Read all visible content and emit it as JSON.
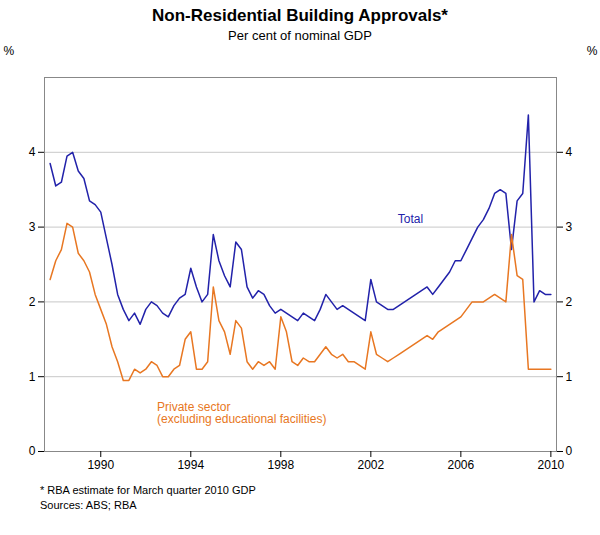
{
  "chart_data": {
    "type": "line",
    "title": "Non-Residential Building Approvals*",
    "subtitle": "Per cent of nominal GDP",
    "footnote": "*   RBA estimate for March quarter 2010 GDP",
    "sources": "Sources: ABS; RBA",
    "ylabel": "%",
    "y2label": "%",
    "xlim": [
      1987.5,
      2010.25
    ],
    "xticks": [
      1990,
      1994,
      1998,
      2002,
      2006,
      2010
    ],
    "ylim": [
      0,
      5
    ],
    "yticks": [
      0,
      1,
      2,
      3,
      4
    ],
    "y2lim": [
      0,
      5
    ],
    "y2ticks": [
      0,
      1,
      2,
      3,
      4
    ],
    "grid": "y",
    "x": [
      1987.75,
      1988.0,
      1988.25,
      1988.5,
      1988.75,
      1989.0,
      1989.25,
      1989.5,
      1989.75,
      1990.0,
      1990.25,
      1990.5,
      1990.75,
      1991.0,
      1991.25,
      1991.5,
      1991.75,
      1992.0,
      1992.25,
      1992.5,
      1992.75,
      1993.0,
      1993.25,
      1993.5,
      1993.75,
      1994.0,
      1994.25,
      1994.5,
      1994.75,
      1995.0,
      1995.25,
      1995.5,
      1995.75,
      1996.0,
      1996.25,
      1996.5,
      1996.75,
      1997.0,
      1997.25,
      1997.5,
      1997.75,
      1998.0,
      1998.25,
      1998.5,
      1998.75,
      1999.0,
      1999.25,
      1999.5,
      1999.75,
      2000.0,
      2000.25,
      2000.5,
      2000.75,
      2001.0,
      2001.25,
      2001.5,
      2001.75,
      2002.0,
      2002.25,
      2002.5,
      2002.75,
      2003.0,
      2003.25,
      2003.5,
      2003.75,
      2004.0,
      2004.25,
      2004.5,
      2004.75,
      2005.0,
      2005.25,
      2005.5,
      2005.75,
      2006.0,
      2006.25,
      2006.5,
      2006.75,
      2007.0,
      2007.25,
      2007.5,
      2007.75,
      2008.0,
      2008.25,
      2008.5,
      2008.75,
      2009.0,
      2009.25,
      2009.5,
      2009.75,
      2010.0
    ],
    "series": [
      {
        "name": "Total",
        "color": "#2222aa",
        "values": [
          3.85,
          3.55,
          3.6,
          3.95,
          4.0,
          3.75,
          3.65,
          3.35,
          3.3,
          3.2,
          2.85,
          2.5,
          2.1,
          1.9,
          1.75,
          1.85,
          1.7,
          1.9,
          2.0,
          1.95,
          1.85,
          1.8,
          1.95,
          2.05,
          2.1,
          2.45,
          2.2,
          2.0,
          2.1,
          2.9,
          2.55,
          2.35,
          2.2,
          2.8,
          2.7,
          2.2,
          2.05,
          2.15,
          2.1,
          1.95,
          1.85,
          1.9,
          1.85,
          1.8,
          1.75,
          1.85,
          1.8,
          1.75,
          1.9,
          2.1,
          2.0,
          1.9,
          1.95,
          1.9,
          1.85,
          1.8,
          1.75,
          2.3,
          2.0,
          1.95,
          1.9,
          1.9,
          1.95,
          2.0,
          2.05,
          2.1,
          2.15,
          2.2,
          2.1,
          2.2,
          2.3,
          2.4,
          2.55,
          2.55,
          2.7,
          2.85,
          3.0,
          3.1,
          3.25,
          3.45,
          3.5,
          3.45,
          2.7,
          3.35,
          3.45,
          4.5,
          2.0,
          2.15,
          2.1,
          2.1
        ]
      },
      {
        "name": "Private sector\n(excluding educational facilities)",
        "color": "#e87722",
        "values": [
          2.3,
          2.55,
          2.7,
          3.05,
          3.0,
          2.65,
          2.55,
          2.4,
          2.1,
          1.9,
          1.7,
          1.4,
          1.2,
          0.95,
          0.95,
          1.1,
          1.05,
          1.1,
          1.2,
          1.15,
          1.0,
          1.0,
          1.1,
          1.15,
          1.5,
          1.6,
          1.1,
          1.1,
          1.2,
          2.2,
          1.75,
          1.6,
          1.3,
          1.75,
          1.65,
          1.2,
          1.1,
          1.2,
          1.15,
          1.2,
          1.1,
          1.8,
          1.6,
          1.2,
          1.15,
          1.25,
          1.2,
          1.2,
          1.3,
          1.4,
          1.3,
          1.25,
          1.3,
          1.2,
          1.2,
          1.15,
          1.1,
          1.6,
          1.3,
          1.25,
          1.2,
          1.25,
          1.3,
          1.35,
          1.4,
          1.45,
          1.5,
          1.55,
          1.5,
          1.6,
          1.65,
          1.7,
          1.75,
          1.8,
          1.9,
          2.0,
          2.0,
          2.0,
          2.05,
          2.1,
          2.05,
          2.0,
          2.9,
          2.35,
          2.3,
          1.1,
          1.1,
          1.1,
          1.1,
          1.1
        ]
      }
    ],
    "annotations": [
      {
        "text": "Total",
        "x": 2003.2,
        "y": 3.05,
        "color": "#2222aa"
      },
      {
        "text": "Private sector\n(excluding educational facilities)",
        "x": 1992.5,
        "y": 0.38,
        "color": "#e87722"
      }
    ]
  }
}
